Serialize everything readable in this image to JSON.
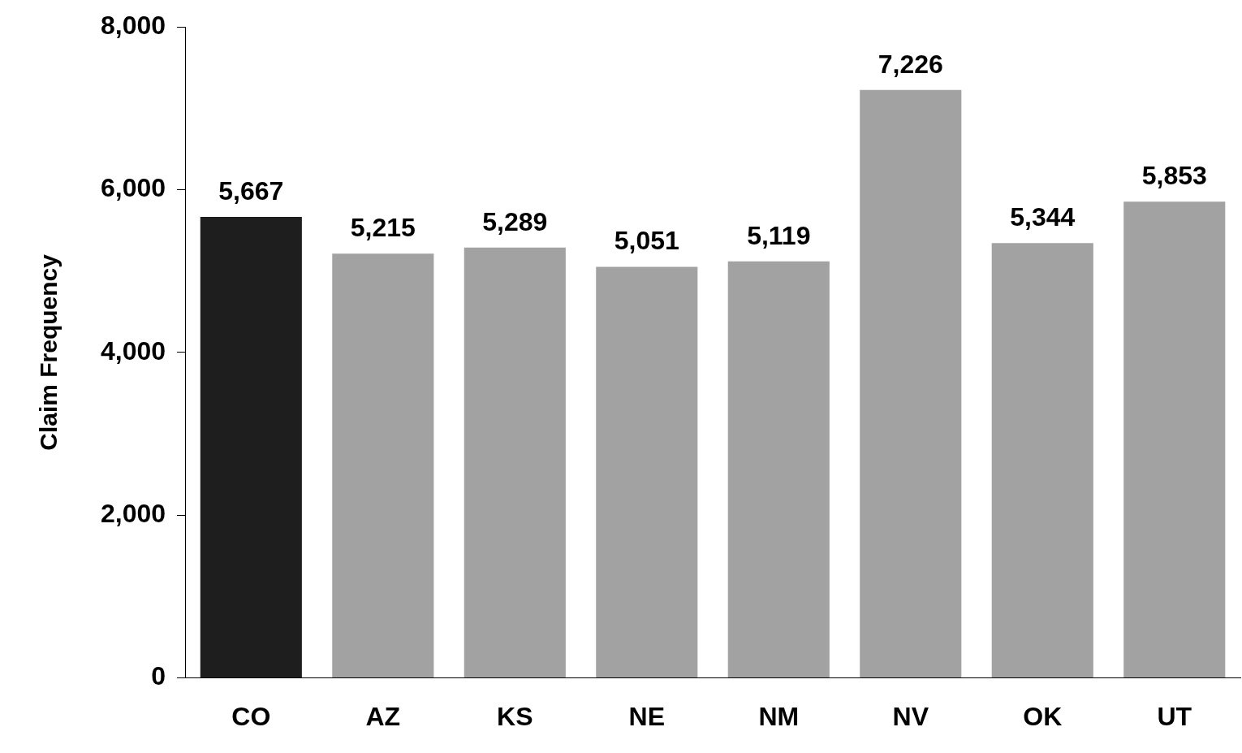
{
  "chart_data": {
    "type": "bar",
    "ylabel": "Claim Frequency",
    "categories": [
      "CO",
      "AZ",
      "KS",
      "NE",
      "NM",
      "NV",
      "OK",
      "UT"
    ],
    "values": [
      5667,
      5215,
      5289,
      5051,
      5119,
      7226,
      5344,
      5853
    ],
    "value_labels": [
      "5,667",
      "5,215",
      "5,289",
      "5,051",
      "5,119",
      "7,226",
      "5,344",
      "5,853"
    ],
    "colors": [
      "#1e1e1e",
      "#a2a2a2",
      "#a2a2a2",
      "#a2a2a2",
      "#a2a2a2",
      "#a2a2a2",
      "#a2a2a2",
      "#a2a2a2"
    ],
    "ylim": [
      0,
      8000
    ],
    "yticks": [
      0,
      {
        "value": 2000,
        "label": "2,000"
      },
      {
        "value": 4000,
        "label": "4,000"
      },
      {
        "value": 6000,
        "label": "6,000"
      },
      {
        "value": 8000,
        "label": "8,000"
      }
    ],
    "grid": false,
    "legend": false
  }
}
